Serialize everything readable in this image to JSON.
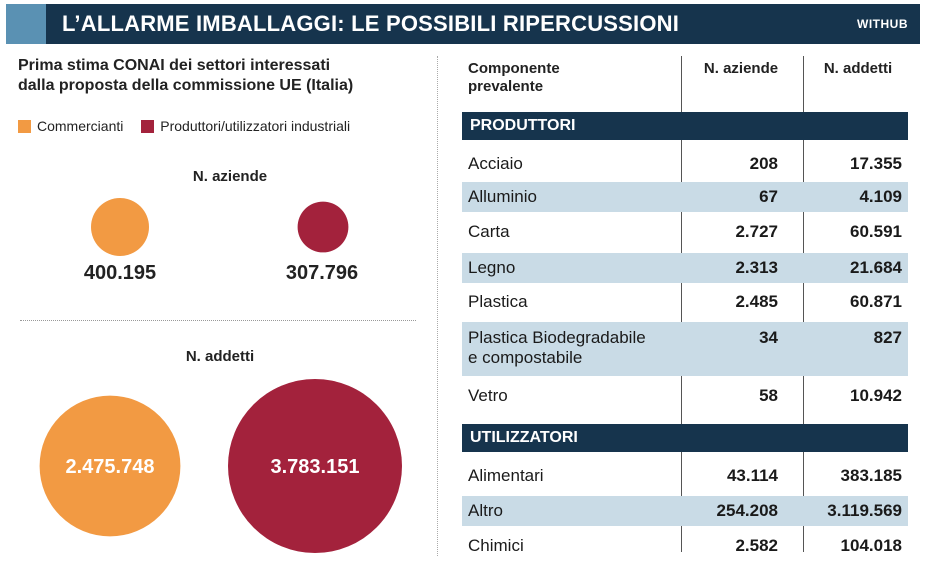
{
  "header": {
    "title": "L’ALLARME IMBALLAGGI: LE POSSIBILI RIPERCUSSIONI",
    "brand": "WITHUB"
  },
  "subtitle_line1": "Prima stima CONAI dei settori interessati",
  "subtitle_line2": "dalla proposta della commissione UE (Italia)",
  "legend": [
    {
      "label": "Commercianti",
      "color": "#f29a43"
    },
    {
      "label": "Produttori/utilizzatori industriali",
      "color": "#a3223c"
    }
  ],
  "chart_data": [
    {
      "type": "bubble",
      "title": "N. aziende",
      "series": [
        {
          "name": "Commercianti",
          "value": 400195,
          "label": "400.195",
          "color": "#f29a43"
        },
        {
          "name": "Produttori/utilizzatori industriali",
          "value": 307796,
          "label": "307.796",
          "color": "#a3223c"
        }
      ]
    },
    {
      "type": "bubble",
      "title": "N. addetti",
      "series": [
        {
          "name": "Commercianti",
          "value": 2475748,
          "label": "2.475.748",
          "color": "#f29a43"
        },
        {
          "name": "Produttori/utilizzatori industriali",
          "value": 3783151,
          "label": "3.783.151",
          "color": "#a3223c"
        }
      ]
    },
    {
      "type": "table",
      "columns": [
        "Componente prevalente",
        "N. aziende",
        "N. addetti"
      ],
      "column_header_line1": "Componente",
      "column_header_line2": "prevalente",
      "groups": [
        {
          "name": "PRODUTTORI",
          "rows": [
            {
              "label": "Acciaio",
              "aziende": "208",
              "addetti": "17.355"
            },
            {
              "label": "Alluminio",
              "aziende": "67",
              "addetti": "4.109"
            },
            {
              "label": "Carta",
              "aziende": "2.727",
              "addetti": "60.591"
            },
            {
              "label": "Legno",
              "aziende": "2.313",
              "addetti": "21.684"
            },
            {
              "label": "Plastica",
              "aziende": "2.485",
              "addetti": "60.871"
            },
            {
              "label": "Plastica Biodegradabile",
              "label2": "e compostabile",
              "aziende": "34",
              "addetti": "827"
            },
            {
              "label": "Vetro",
              "aziende": "58",
              "addetti": "10.942"
            }
          ]
        },
        {
          "name": "UTILIZZATORI",
          "rows": [
            {
              "label": "Alimentari",
              "aziende": "43.114",
              "addetti": "383.185"
            },
            {
              "label": "Altro",
              "aziende": "254.208",
              "addetti": "3.119.569"
            },
            {
              "label": "Chimici",
              "aziende": "2.582",
              "addetti": "104.018"
            }
          ]
        }
      ]
    }
  ]
}
